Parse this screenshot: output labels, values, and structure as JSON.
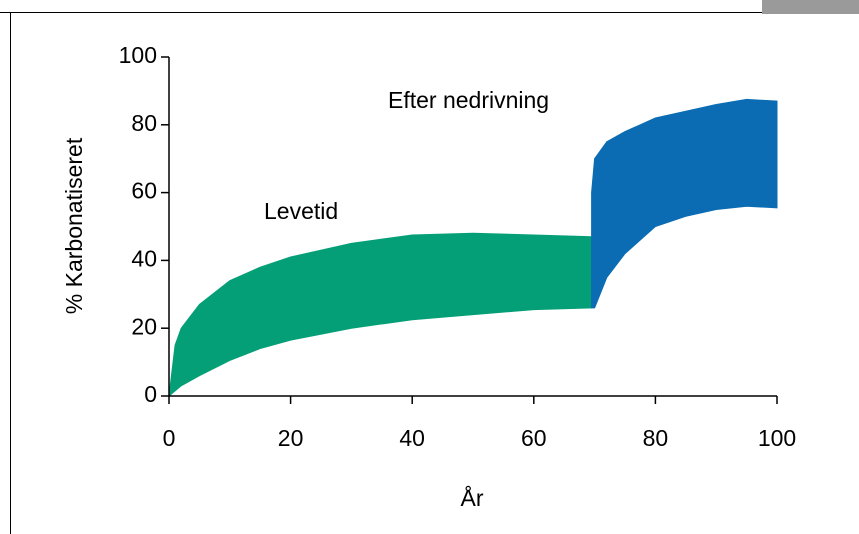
{
  "chart_data": {
    "type": "band",
    "xlabel": "År",
    "ylabel": "% Karbonatiseret",
    "xlim": [
      0,
      100
    ],
    "ylim": [
      0,
      100
    ],
    "xticks": [
      0,
      20,
      40,
      60,
      80,
      100
    ],
    "yticks": [
      0,
      20,
      40,
      60,
      80,
      100
    ],
    "series": [
      {
        "name": "Levetid",
        "color": "#049f76",
        "x": [
          0,
          1,
          2,
          5,
          10,
          15,
          20,
          30,
          40,
          50,
          60,
          69.5
        ],
        "upper": [
          0,
          15,
          20,
          27,
          34,
          38,
          41,
          45,
          47.5,
          48,
          47.5,
          47
        ],
        "lower": [
          0,
          1.5,
          3,
          6,
          10.5,
          14,
          16.5,
          20,
          22.5,
          24,
          25.5,
          26
        ]
      },
      {
        "name": "Efter nedrivning",
        "color": "#0b6cb3",
        "x": [
          69.5,
          70,
          72,
          75,
          80,
          85,
          90,
          95,
          100
        ],
        "upper": [
          60,
          70,
          75,
          78,
          82,
          84,
          86,
          87.5,
          87
        ],
        "lower": [
          26,
          26,
          35,
          42,
          50,
          53,
          55,
          56,
          55.5
        ]
      }
    ]
  }
}
